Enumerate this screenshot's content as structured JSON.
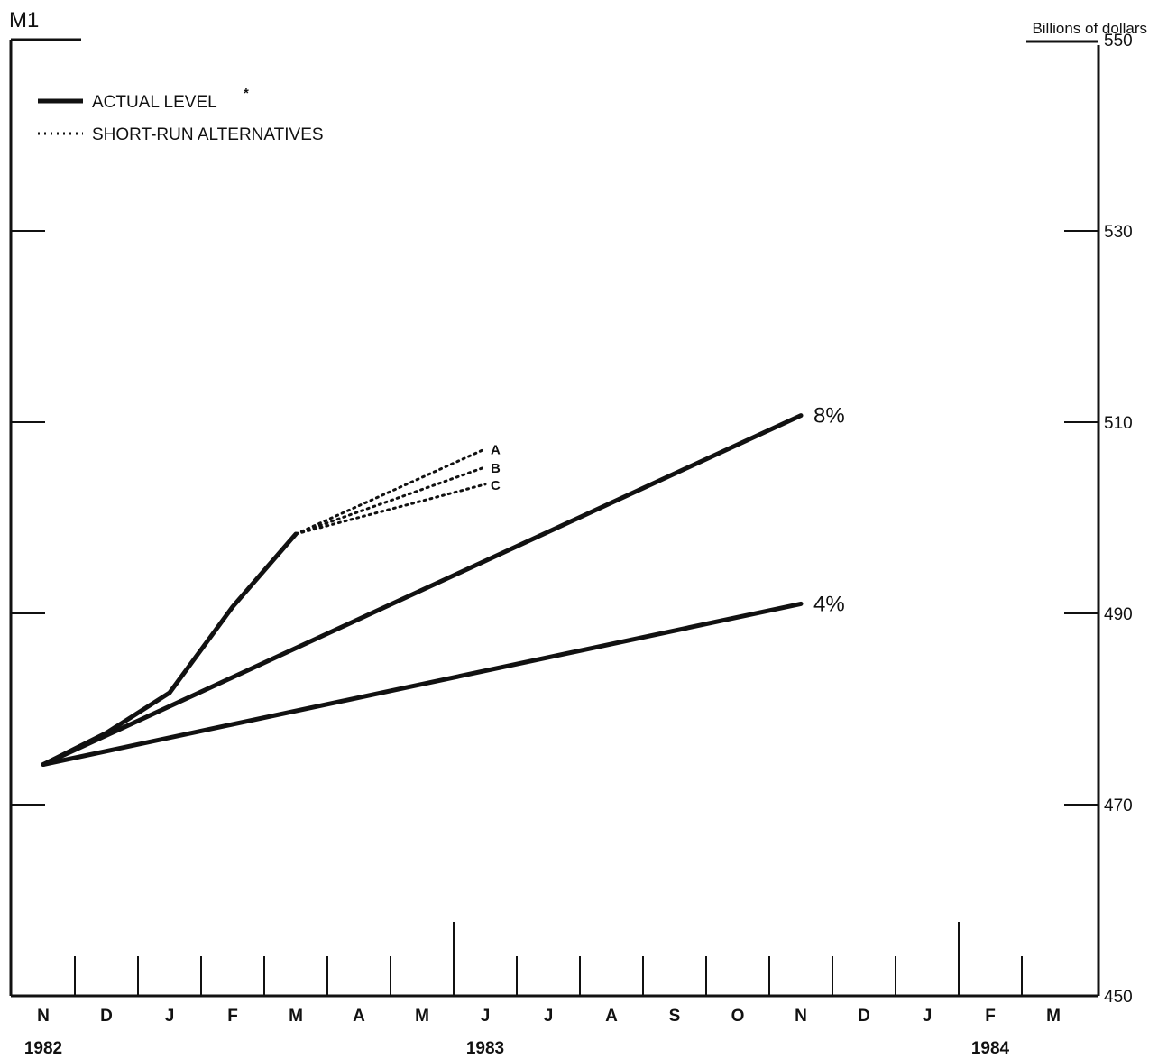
{
  "chart_data": {
    "type": "line",
    "title": "M1",
    "ylabel": "Billions of dollars",
    "ylim": [
      450,
      550
    ],
    "yticks": [
      450,
      470,
      490,
      510,
      530,
      550
    ],
    "x_months": [
      "N",
      "D",
      "J",
      "F",
      "M",
      "A",
      "M",
      "J",
      "J",
      "A",
      "S",
      "O",
      "N",
      "D",
      "J",
      "F",
      "M"
    ],
    "x_years": [
      {
        "label": "1982",
        "month_index": 0
      },
      {
        "label": "1983",
        "month_index": 7
      },
      {
        "label": "1984",
        "month_index": 15
      }
    ],
    "legend": {
      "placement": "top-left",
      "items": [
        {
          "label": "ACTUAL LEVEL",
          "marker": "*",
          "style": "solid"
        },
        {
          "label": "SHORT-RUN ALTERNATIVES",
          "style": "dotted"
        }
      ]
    },
    "series": [
      {
        "style": "solid",
        "points": [
          [
            0,
            474.2
          ],
          [
            1,
            477.5
          ],
          [
            2,
            481.7
          ],
          [
            3,
            490.7
          ],
          [
            4,
            498.3
          ]
        ]
      },
      {
        "label": "8%",
        "style": "solid",
        "points": [
          [
            0,
            474.2
          ],
          [
            12,
            510.7
          ]
        ]
      },
      {
        "label": "4%",
        "style": "solid",
        "points": [
          [
            0,
            474.2
          ],
          [
            12,
            491.0
          ]
        ]
      },
      {
        "label": "A",
        "style": "dotted",
        "points": [
          [
            4,
            498.3
          ],
          [
            7,
            507.2
          ]
        ]
      },
      {
        "label": "B",
        "style": "dotted",
        "points": [
          [
            4,
            498.3
          ],
          [
            7,
            505.3
          ]
        ]
      },
      {
        "label": "C",
        "style": "dotted",
        "points": [
          [
            4,
            498.3
          ],
          [
            7,
            503.5
          ]
        ]
      }
    ]
  }
}
